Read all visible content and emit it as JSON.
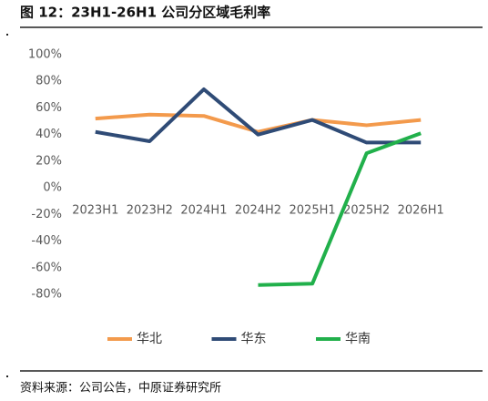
{
  "chart_data": {
    "type": "line",
    "title": "图 12：23H1-26H1 公司分区域毛利率",
    "source": "资料来源：公司公告，中原证券研究所",
    "categories": [
      "2023H1",
      "2023H2",
      "2024H1",
      "2024H2",
      "2025H1",
      "2025H2",
      "2026H1"
    ],
    "series": [
      {
        "name": "华北",
        "color": "#f39a4c",
        "values": [
          52,
          55,
          54,
          42,
          51,
          47,
          51
        ]
      },
      {
        "name": "华东",
        "color": "#2f4b76",
        "values": [
          42,
          35,
          74,
          40,
          51,
          34,
          34
        ]
      },
      {
        "name": "华南",
        "color": "#21b04b",
        "values": [
          null,
          null,
          null,
          -73,
          -72,
          26,
          41
        ]
      }
    ],
    "ylim": [
      -80,
      100
    ],
    "yticks": [
      {
        "value": 100,
        "label": "100%"
      },
      {
        "value": 80,
        "label": "80%"
      },
      {
        "value": 60,
        "label": "60%"
      },
      {
        "value": 40,
        "label": "40%"
      },
      {
        "value": 20,
        "label": "20%"
      },
      {
        "value": 0,
        "label": "0%"
      },
      {
        "value": -20,
        "label": "-20%"
      },
      {
        "value": -40,
        "label": "-40%"
      },
      {
        "value": -60,
        "label": "-60%"
      },
      {
        "value": -80,
        "label": "-80%"
      }
    ],
    "grid": false,
    "legend": "bottom"
  }
}
